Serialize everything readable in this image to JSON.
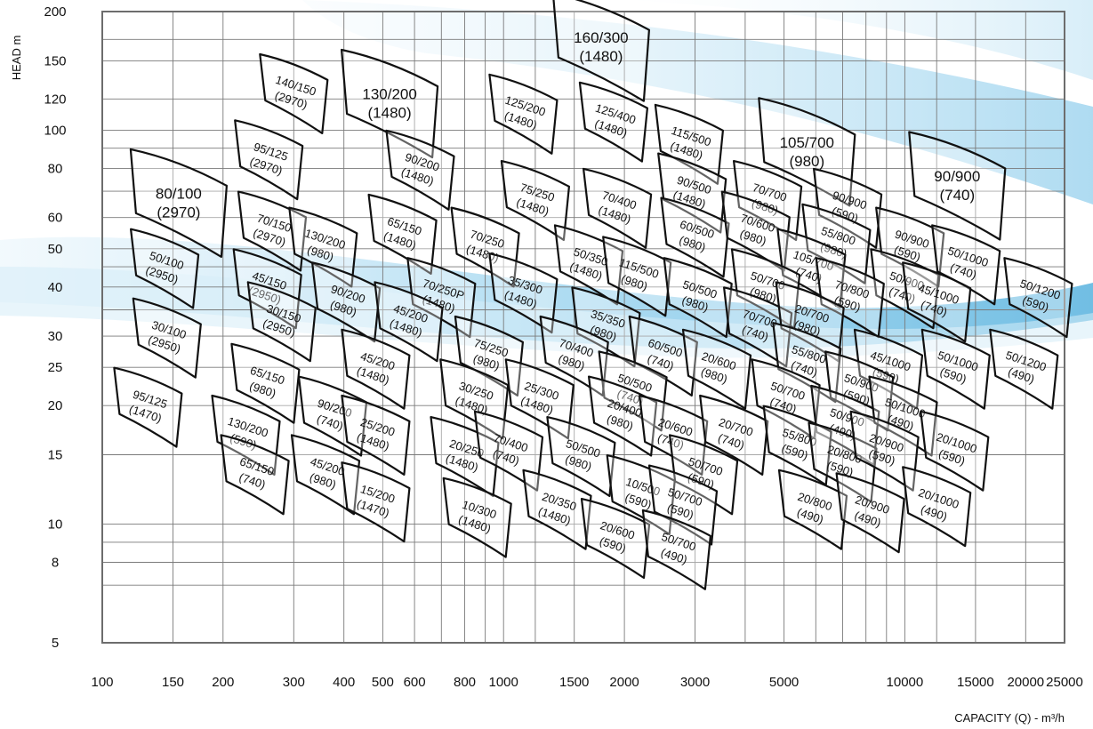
{
  "chart_data": {
    "type": "pump-selection-chart",
    "xlabel": "CAPACITY (Q) - m³/h",
    "ylabel": "HEAD m",
    "x_scale": "log",
    "y_scale": "log",
    "xlim": [
      100,
      25000
    ],
    "ylim": [
      5,
      200
    ],
    "grid": true,
    "x_ticks": [
      100,
      150,
      200,
      300,
      400,
      500,
      600,
      800,
      1000,
      1500,
      2000,
      3000,
      5000,
      10000,
      15000,
      20000,
      25000
    ],
    "x_tick_labels": [
      "100",
      "150",
      "200",
      "300",
      "400",
      "500",
      "600",
      "800",
      "1000",
      "1500",
      "2000",
      "3000",
      "5000",
      "10000",
      "15000",
      "20000",
      "25000"
    ],
    "y_ticks": [
      5,
      8,
      10,
      15,
      20,
      25,
      30,
      40,
      50,
      60,
      80,
      100,
      120,
      150,
      200
    ],
    "y_tick_labels": [
      "5",
      "8",
      "10",
      "15",
      "20",
      "25",
      "30",
      "40",
      "50",
      "60",
      "80",
      "100",
      "120",
      "150",
      "200"
    ],
    "zones": [
      {
        "model": "160/300",
        "speed": "(1480)",
        "q": 1750,
        "h": 164,
        "big": true
      },
      {
        "model": "140/150",
        "speed": "(2970)",
        "q": 300,
        "h": 125
      },
      {
        "model": "130/200",
        "speed": "(1480)",
        "q": 520,
        "h": 118,
        "big": true
      },
      {
        "model": "125/200",
        "speed": "(1480)",
        "q": 1120,
        "h": 111
      },
      {
        "model": "125/400",
        "speed": "(1480)",
        "q": 1880,
        "h": 106
      },
      {
        "model": "115/500",
        "speed": "(1480)",
        "q": 2900,
        "h": 93
      },
      {
        "model": "105/700",
        "speed": "(980)",
        "q": 5700,
        "h": 89,
        "big": true
      },
      {
        "model": "90/900",
        "speed": "(740)",
        "q": 13500,
        "h": 73,
        "big": true
      },
      {
        "model": "95/125",
        "speed": "(2970)",
        "q": 260,
        "h": 85
      },
      {
        "model": "90/200",
        "speed": "(1480)",
        "q": 620,
        "h": 80
      },
      {
        "model": "80/100",
        "speed": "(2970)",
        "q": 155,
        "h": 66,
        "big": true
      },
      {
        "model": "75/250",
        "speed": "(1480)",
        "q": 1200,
        "h": 67
      },
      {
        "model": "70/400",
        "speed": "(1480)",
        "q": 1920,
        "h": 64
      },
      {
        "model": "90/500",
        "speed": "(1480)",
        "q": 2950,
        "h": 70
      },
      {
        "model": "70/700",
        "speed": "(980)",
        "q": 4550,
        "h": 67
      },
      {
        "model": "90/900",
        "speed": "(590)",
        "q": 7200,
        "h": 64
      },
      {
        "model": "70/150",
        "speed": "(2970)",
        "q": 265,
        "h": 56
      },
      {
        "model": "65/150",
        "speed": "(1480)",
        "q": 560,
        "h": 55
      },
      {
        "model": "130/200",
        "speed": "(980)",
        "q": 355,
        "h": 51
      },
      {
        "model": "70/250",
        "speed": "(1480)",
        "q": 900,
        "h": 51
      },
      {
        "model": "60/500",
        "speed": "(980)",
        "q": 3000,
        "h": 54
      },
      {
        "model": "70/600",
        "speed": "(980)",
        "q": 4250,
        "h": 56
      },
      {
        "model": "55/800",
        "speed": "(980)",
        "q": 6750,
        "h": 52
      },
      {
        "model": "90/900",
        "speed": "(590)",
        "q": 10300,
        "h": 51
      },
      {
        "model": "50/1000",
        "speed": "(740)",
        "q": 14200,
        "h": 46
      },
      {
        "model": "50/100",
        "speed": "(2950)",
        "q": 143,
        "h": 45
      },
      {
        "model": "45/150",
        "speed": "(2950)",
        "q": 258,
        "h": 40
      },
      {
        "model": "50/350",
        "speed": "(1480)",
        "q": 1630,
        "h": 46
      },
      {
        "model": "115/500",
        "speed": "(980)",
        "q": 2150,
        "h": 43
      },
      {
        "model": "105/700",
        "speed": "(740)",
        "q": 5850,
        "h": 45
      },
      {
        "model": "50/900",
        "speed": "(740)",
        "q": 10000,
        "h": 40
      },
      {
        "model": "50/1200",
        "speed": "(590)",
        "q": 21500,
        "h": 38
      },
      {
        "model": "35/300",
        "speed": "(1480)",
        "q": 1120,
        "h": 39
      },
      {
        "model": "50/500",
        "speed": "(980)",
        "q": 3050,
        "h": 38
      },
      {
        "model": "50/700",
        "speed": "(980)",
        "q": 4500,
        "h": 40
      },
      {
        "model": "70/800",
        "speed": "(590)",
        "q": 7300,
        "h": 38
      },
      {
        "model": "45/1000",
        "speed": "(740)",
        "q": 12000,
        "h": 37
      },
      {
        "model": "90/200",
        "speed": "(980)",
        "q": 405,
        "h": 37
      },
      {
        "model": "70/250P",
        "speed": "(1480)",
        "q": 700,
        "h": 38
      },
      {
        "model": "45/200",
        "speed": "(1480)",
        "q": 580,
        "h": 33
      },
      {
        "model": "30/150",
        "speed": "(2950)",
        "q": 280,
        "h": 33
      },
      {
        "model": "35/350",
        "speed": "(980)",
        "q": 1800,
        "h": 32
      },
      {
        "model": "70/700",
        "speed": "(740)",
        "q": 4300,
        "h": 32
      },
      {
        "model": "20/700",
        "speed": "(980)",
        "q": 5800,
        "h": 33
      },
      {
        "model": "30/100",
        "speed": "(2950)",
        "q": 145,
        "h": 30
      },
      {
        "model": "75/250",
        "speed": "(980)",
        "q": 920,
        "h": 27
      },
      {
        "model": "70/400",
        "speed": "(980)",
        "q": 1500,
        "h": 27
      },
      {
        "model": "60/500",
        "speed": "(740)",
        "q": 2500,
        "h": 27
      },
      {
        "model": "20/600",
        "speed": "(980)",
        "q": 3400,
        "h": 25
      },
      {
        "model": "55/800",
        "speed": "(740)",
        "q": 5700,
        "h": 26
      },
      {
        "model": "45/1000",
        "speed": "(590)",
        "q": 9100,
        "h": 25
      },
      {
        "model": "50/1000",
        "speed": "(590)",
        "q": 13400,
        "h": 25
      },
      {
        "model": "50/1200",
        "speed": "(490)",
        "q": 19800,
        "h": 25
      },
      {
        "model": "45/200",
        "speed": "(1480)",
        "q": 480,
        "h": 25
      },
      {
        "model": "65/150",
        "speed": "(980)",
        "q": 255,
        "h": 23
      },
      {
        "model": "50/500",
        "speed": "(740)",
        "q": 2100,
        "h": 22
      },
      {
        "model": "50/900",
        "speed": "(590)",
        "q": 7700,
        "h": 22
      },
      {
        "model": "30/250",
        "speed": "(1480)",
        "q": 845,
        "h": 21
      },
      {
        "model": "25/300",
        "speed": "(1480)",
        "q": 1230,
        "h": 21
      },
      {
        "model": "50/700",
        "speed": "(740)",
        "q": 5050,
        "h": 21
      },
      {
        "model": "95/125",
        "speed": "(1470)",
        "q": 130,
        "h": 20
      },
      {
        "model": "90/200",
        "speed": "(740)",
        "q": 375,
        "h": 19
      },
      {
        "model": "20/400",
        "speed": "(980)",
        "q": 1980,
        "h": 19
      },
      {
        "model": "50/900",
        "speed": "(490)",
        "q": 7100,
        "h": 18
      },
      {
        "model": "50/1000",
        "speed": "(490)",
        "q": 9900,
        "h": 19
      },
      {
        "model": "130/200",
        "speed": "(590)",
        "q": 228,
        "h": 17
      },
      {
        "model": "25/200",
        "speed": "(1480)",
        "q": 480,
        "h": 17
      },
      {
        "model": "20/600",
        "speed": "(740)",
        "q": 2650,
        "h": 17
      },
      {
        "model": "20/700",
        "speed": "(740)",
        "q": 3750,
        "h": 17
      },
      {
        "model": "55/800",
        "speed": "(590)",
        "q": 5400,
        "h": 16
      },
      {
        "model": "20/250",
        "speed": "(1480)",
        "q": 800,
        "h": 15
      },
      {
        "model": "70/400",
        "speed": "(740)",
        "q": 1030,
        "h": 15.5
      },
      {
        "model": "20/800",
        "speed": "(590)",
        "q": 7000,
        "h": 14.5
      },
      {
        "model": "20/900",
        "speed": "(590)",
        "q": 8900,
        "h": 15.5
      },
      {
        "model": "20/1000",
        "speed": "(590)",
        "q": 13300,
        "h": 15.5
      },
      {
        "model": "50/500",
        "speed": "(980)",
        "q": 1560,
        "h": 15
      },
      {
        "model": "50/700",
        "speed": "(590)",
        "q": 3150,
        "h": 13.5
      },
      {
        "model": "65/150",
        "speed": "(740)",
        "q": 240,
        "h": 13.5
      },
      {
        "model": "45/200",
        "speed": "(980)",
        "q": 360,
        "h": 13.5
      },
      {
        "model": "10/500",
        "speed": "(590)",
        "q": 2200,
        "h": 12
      },
      {
        "model": "15/200",
        "speed": "(1470)",
        "q": 480,
        "h": 11.5
      },
      {
        "model": "20/350",
        "speed": "(1480)",
        "q": 1360,
        "h": 11
      },
      {
        "model": "50/700",
        "speed": "(590)",
        "q": 2800,
        "h": 11.3
      },
      {
        "model": "20/800",
        "speed": "(490)",
        "q": 5900,
        "h": 11
      },
      {
        "model": "20/900",
        "speed": "(490)",
        "q": 8200,
        "h": 10.8
      },
      {
        "model": "20/1000",
        "speed": "(490)",
        "q": 12000,
        "h": 11.2
      },
      {
        "model": "10/300",
        "speed": "(1480)",
        "q": 860,
        "h": 10.5
      },
      {
        "model": "20/600",
        "speed": "(590)",
        "q": 1900,
        "h": 9.3
      },
      {
        "model": "50/700",
        "speed": "(490)",
        "q": 2700,
        "h": 8.7
      }
    ]
  }
}
